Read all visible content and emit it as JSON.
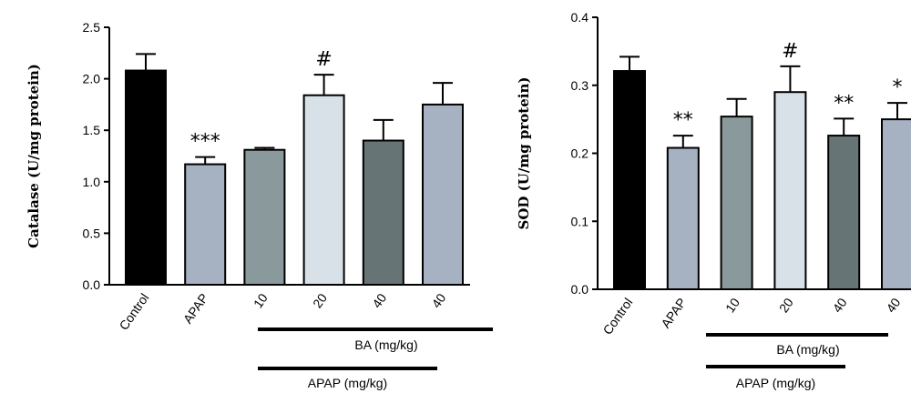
{
  "chart_data": [
    {
      "type": "bar",
      "ylabel": "Catalase (U/mg protein)",
      "ylim": [
        0,
        2.5
      ],
      "yticks": [
        "0.0",
        "0.5",
        "1.0",
        "1.5",
        "2.0",
        "2.5"
      ],
      "categories": [
        "Control",
        "APAP",
        "10",
        "20",
        "40",
        "40"
      ],
      "values": [
        2.08,
        1.17,
        1.31,
        1.84,
        1.4,
        1.75
      ],
      "errors": [
        0.16,
        0.07,
        0.02,
        0.2,
        0.2,
        0.21
      ],
      "significance": [
        "",
        "***",
        "",
        "#",
        "",
        ""
      ],
      "colors": [
        "#000000",
        "#a6b1c2",
        "#8a9a9c",
        "#d8e1e8",
        "#677475",
        "#a6b1c2"
      ],
      "group_labels": [
        "BA (mg/kg)",
        "APAP (mg/kg)"
      ]
    },
    {
      "type": "bar",
      "ylabel": "SOD (U/mg protein)",
      "ylim": [
        0,
        0.4
      ],
      "yticks": [
        "0.0",
        "0.1",
        "0.2",
        "0.3",
        "0.4"
      ],
      "categories": [
        "Control",
        "APAP",
        "10",
        "20",
        "40",
        "40"
      ],
      "values": [
        0.321,
        0.208,
        0.254,
        0.29,
        0.226,
        0.25
      ],
      "errors": [
        0.021,
        0.018,
        0.026,
        0.038,
        0.025,
        0.024
      ],
      "significance": [
        "",
        "**",
        "",
        "#",
        "**",
        "*"
      ],
      "colors": [
        "#000000",
        "#a6b1c2",
        "#8a9a9c",
        "#d8e1e8",
        "#677475",
        "#a6b1c2"
      ],
      "group_labels": [
        "BA (mg/kg)",
        "APAP (mg/kg)"
      ]
    }
  ]
}
